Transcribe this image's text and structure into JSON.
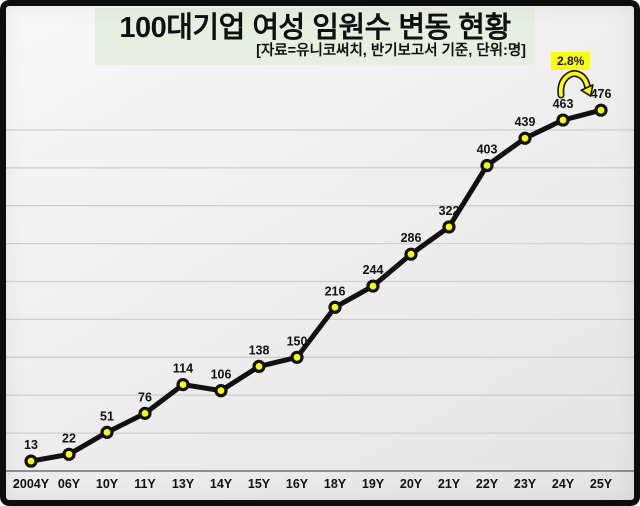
{
  "page": {
    "title": "100대기업 여성 임원수 변동 현황",
    "subtitle": "[자료=유니코써치, 반기보고서 기준, 단위:명]"
  },
  "annotation": {
    "label": "2.8%"
  },
  "colors": {
    "marker": "#ffff00",
    "line": "#111111",
    "title_bg": "#e6efe0",
    "annotation_bg": "#ffff00",
    "grid": "#cfcfcf",
    "axis": "#8f8f8f",
    "label_text": "#111111"
  },
  "chart_data": {
    "type": "line",
    "title": "100대기업 여성 임원수 변동 현황",
    "subtitle": "[자료=유니코써치, 반기보고서 기준, 단위:명]",
    "categories": [
      "2004Y",
      "06Y",
      "10Y",
      "11Y",
      "13Y",
      "14Y",
      "15Y",
      "16Y",
      "18Y",
      "19Y",
      "20Y",
      "21Y",
      "22Y",
      "23Y",
      "24Y",
      "25Y"
    ],
    "values": [
      13,
      22,
      51,
      76,
      114,
      106,
      138,
      150,
      216,
      244,
      286,
      322,
      403,
      439,
      463,
      476
    ],
    "xlabel": "",
    "ylabel": "",
    "ylim": [
      0,
      500
    ],
    "grid_step": 50,
    "grid": true,
    "legend": false,
    "annotation_text": "2.8%"
  }
}
